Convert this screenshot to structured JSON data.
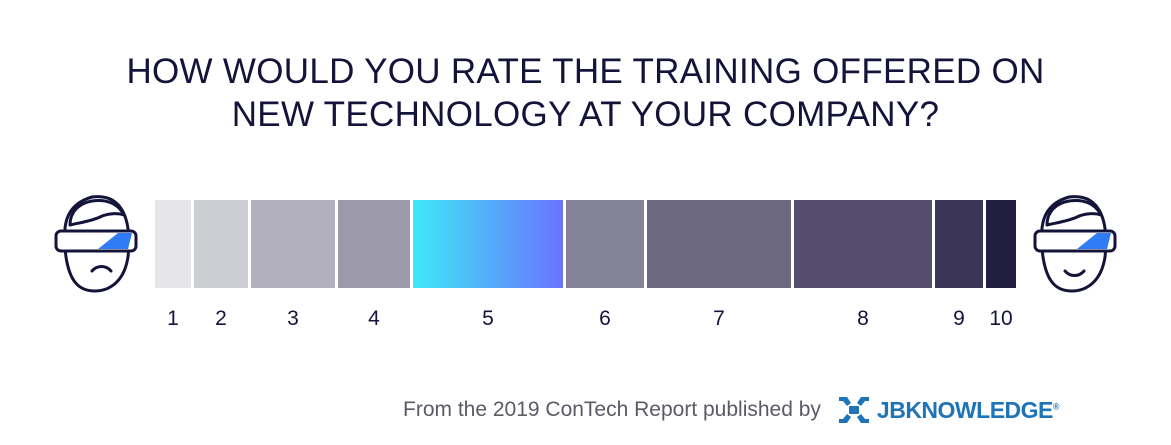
{
  "title": {
    "line1": "HOW WOULD YOU RATE THE TRAINING OFFERED ON",
    "line2": "NEW TECHNOLOGY AT YOUR COMPANY?"
  },
  "chart_data": {
    "type": "bar",
    "title": "HOW WOULD YOU RATE THE TRAINING OFFERED ON NEW TECHNOLOGY AT YOUR COMPANY?",
    "categories": [
      "1",
      "2",
      "3",
      "4",
      "5",
      "6",
      "7",
      "8",
      "9",
      "10"
    ],
    "values": [
      3,
      4.5,
      7,
      6,
      12.5,
      6.5,
      12,
      11.5,
      4,
      2.5
    ],
    "colors": [
      "#e6e6ea",
      "#cdcdd6",
      "#b2b0be",
      "#9b99aa",
      "#3de8f6",
      "#858398",
      "#6c6880",
      "#544e6c",
      "#3b3557",
      "#221e3f"
    ],
    "gradient": {
      "index": 4,
      "from": "#3de8f6",
      "to": "#6a73fd"
    },
    "encoding": "stacked proportional segments",
    "legend": "none",
    "grid": false
  },
  "icons": {
    "left": "unhappy-vr-headset-face-icon",
    "right": "happy-vr-headset-face-icon",
    "logo": "jbknowledge-logo-icon"
  },
  "footer": {
    "source_text": "From the 2019 ConTech Report published by",
    "logo_text": "JBKNOWLEDGE",
    "logo_reg": "®"
  },
  "colors": {
    "title": "#14143a",
    "footer_text": "#5a5a68",
    "logo_blue": "#1e74b8",
    "visor_accent": "#2f7cf6"
  }
}
